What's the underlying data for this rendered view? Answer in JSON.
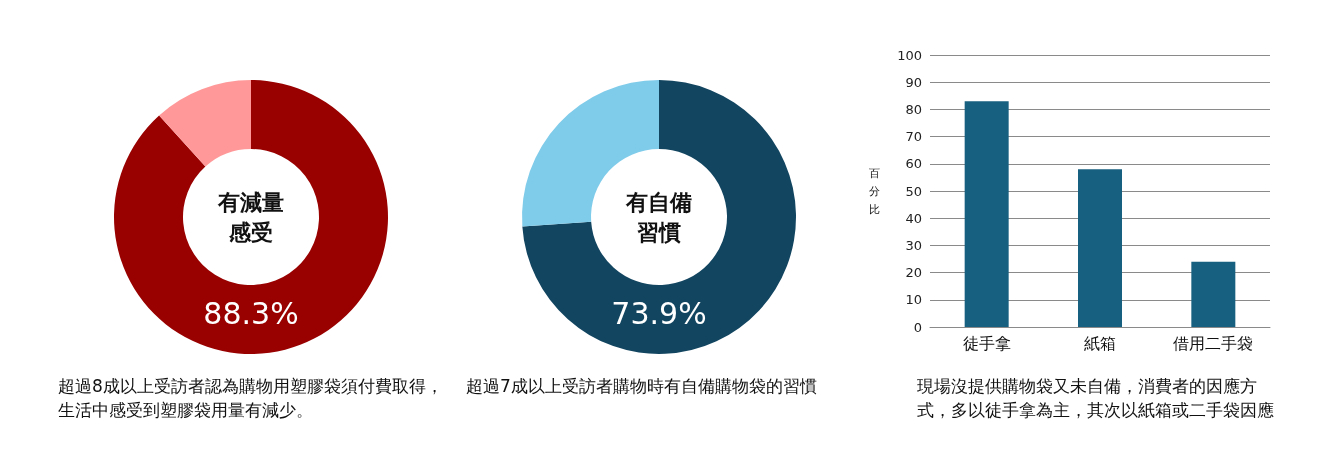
{
  "chart_data": [
    {
      "type": "donut",
      "categories": [
        null,
        null
      ],
      "values": [
        88.3,
        11.7
      ],
      "colors": [
        "#990000",
        "#ff9999"
      ],
      "value_labels": [
        "88.3%",
        null
      ],
      "annotations": [
        "有減量感受",
        "超過8成以上受訪者認為購物用塑膠袋須付費取得，生活中感受到塑膠袋用量有減少。"
      ]
    },
    {
      "type": "donut",
      "categories": [
        null,
        null
      ],
      "values": [
        73.9,
        26.1
      ],
      "colors": [
        "#124560",
        "#7fcbea"
      ],
      "value_labels": [
        "73.9%",
        null
      ],
      "annotations": [
        "有自備習慣",
        "超過7成以上受訪者購物時有自備購物袋的習慣"
      ]
    },
    {
      "type": "bar",
      "categories": [
        "徒手拿",
        "紙箱",
        "借用二手袋"
      ],
      "values": [
        83,
        58,
        24
      ],
      "color": "#17607f",
      "ylabel": "百分比",
      "ylim": [
        0,
        100
      ],
      "yticks": [
        0,
        10,
        20,
        30,
        40,
        50,
        60,
        70,
        80,
        90,
        100
      ],
      "grid": "y",
      "annotations": [
        "現場沒提供購物袋又未自備，消費者的因應方式，多以徒手拿為主，其次以紙箱或二手袋因應"
      ]
    }
  ]
}
